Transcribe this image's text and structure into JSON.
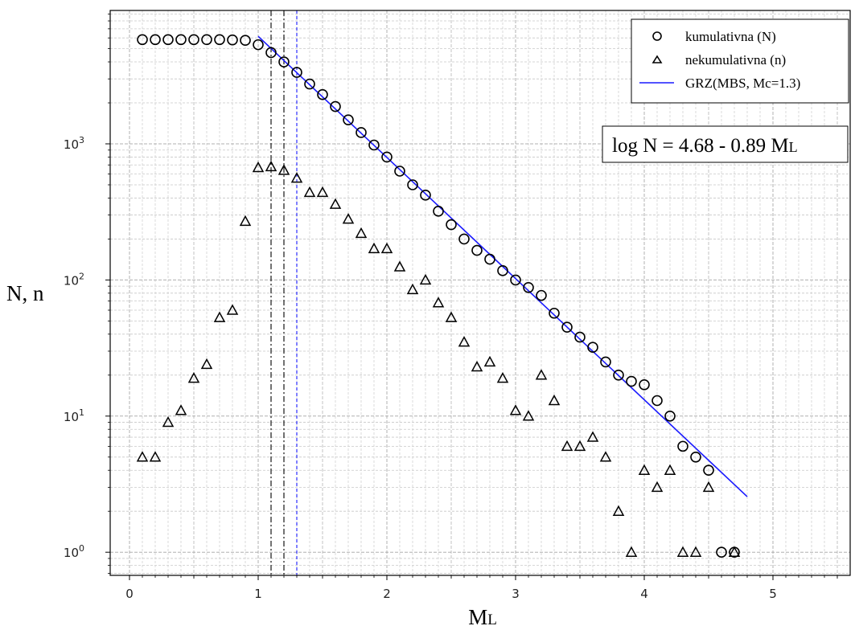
{
  "chart_data": {
    "type": "scatter",
    "xlabel_main": "M",
    "xlabel_sub": "L",
    "ylabel": "N, n",
    "xlim": [
      -0.15,
      5.6
    ],
    "ylim_log10": [
      -0.17,
      3.98
    ],
    "y_scale": "log",
    "grid": true,
    "x_ticks": [
      0,
      1,
      2,
      3,
      4,
      5
    ],
    "y_ticks": [
      {
        "value": 1,
        "base": "10",
        "exp": "0"
      },
      {
        "value": 10,
        "base": "10",
        "exp": "1"
      },
      {
        "value": 100,
        "base": "10",
        "exp": "2"
      },
      {
        "value": 1000,
        "base": "10",
        "exp": "3"
      }
    ],
    "series": [
      {
        "name": "kumulativna (N)",
        "marker": "circle",
        "x": [
          0.1,
          0.2,
          0.3,
          0.4,
          0.5,
          0.6,
          0.7,
          0.8,
          0.9,
          1.0,
          1.1,
          1.2,
          1.3,
          1.4,
          1.5,
          1.6,
          1.7,
          1.8,
          1.9,
          2.0,
          2.1,
          2.2,
          2.3,
          2.4,
          2.5,
          2.6,
          2.7,
          2.8,
          2.9,
          3.0,
          3.1,
          3.2,
          3.3,
          3.4,
          3.5,
          3.6,
          3.7,
          3.8,
          3.9,
          4.0,
          4.1,
          4.2,
          4.3,
          4.4,
          4.5,
          4.6,
          4.7
        ],
        "y": [
          5830,
          5830,
          5830,
          5830,
          5830,
          5830,
          5830,
          5800,
          5760,
          5350,
          4680,
          4000,
          3350,
          2750,
          2300,
          1880,
          1500,
          1210,
          980,
          800,
          630,
          500,
          420,
          320,
          255,
          200,
          165,
          142,
          117,
          100,
          88,
          77,
          57,
          45,
          38,
          32,
          25,
          20,
          18,
          17,
          13,
          10,
          6,
          5,
          4,
          1,
          1
        ]
      },
      {
        "name": "nekumulativna (n)",
        "marker": "triangle",
        "x": [
          0.1,
          0.2,
          0.3,
          0.4,
          0.5,
          0.6,
          0.7,
          0.8,
          0.9,
          1.0,
          1.1,
          1.2,
          1.3,
          1.4,
          1.5,
          1.6,
          1.7,
          1.8,
          1.9,
          2.0,
          2.1,
          2.2,
          2.3,
          2.4,
          2.5,
          2.6,
          2.7,
          2.8,
          2.9,
          3.0,
          3.1,
          3.2,
          3.3,
          3.4,
          3.5,
          3.6,
          3.7,
          3.8,
          3.9,
          4.0,
          4.1,
          4.2,
          4.3,
          4.4,
          4.5,
          4.7
        ],
        "y": [
          5,
          5,
          9,
          11,
          19,
          24,
          53,
          60,
          270,
          670,
          680,
          640,
          560,
          440,
          440,
          360,
          280,
          220,
          170,
          170,
          125,
          85,
          100,
          68,
          53,
          35,
          23,
          25,
          19,
          11,
          10,
          20,
          13,
          6,
          6,
          7,
          5,
          2,
          1,
          4,
          3,
          4,
          1,
          1,
          3,
          1
        ]
      },
      {
        "name": "GRZ(MBS, Mc=1.3)",
        "type": "line",
        "color": "#1a1aff",
        "x_range": [
          1.0,
          4.8
        ],
        "intercept": 4.68,
        "slope": -0.89
      }
    ],
    "vlines": [
      {
        "x": 1.1,
        "color": "#000000",
        "style": "dashdot"
      },
      {
        "x": 1.2,
        "color": "#000000",
        "style": "dashdot"
      },
      {
        "x": 1.3,
        "color": "#1a1aff",
        "style": "dashed"
      }
    ],
    "legend_position": "top-right",
    "annotation": {
      "main": "log N = 4.68 - 0.89 M",
      "sub": "L"
    }
  }
}
